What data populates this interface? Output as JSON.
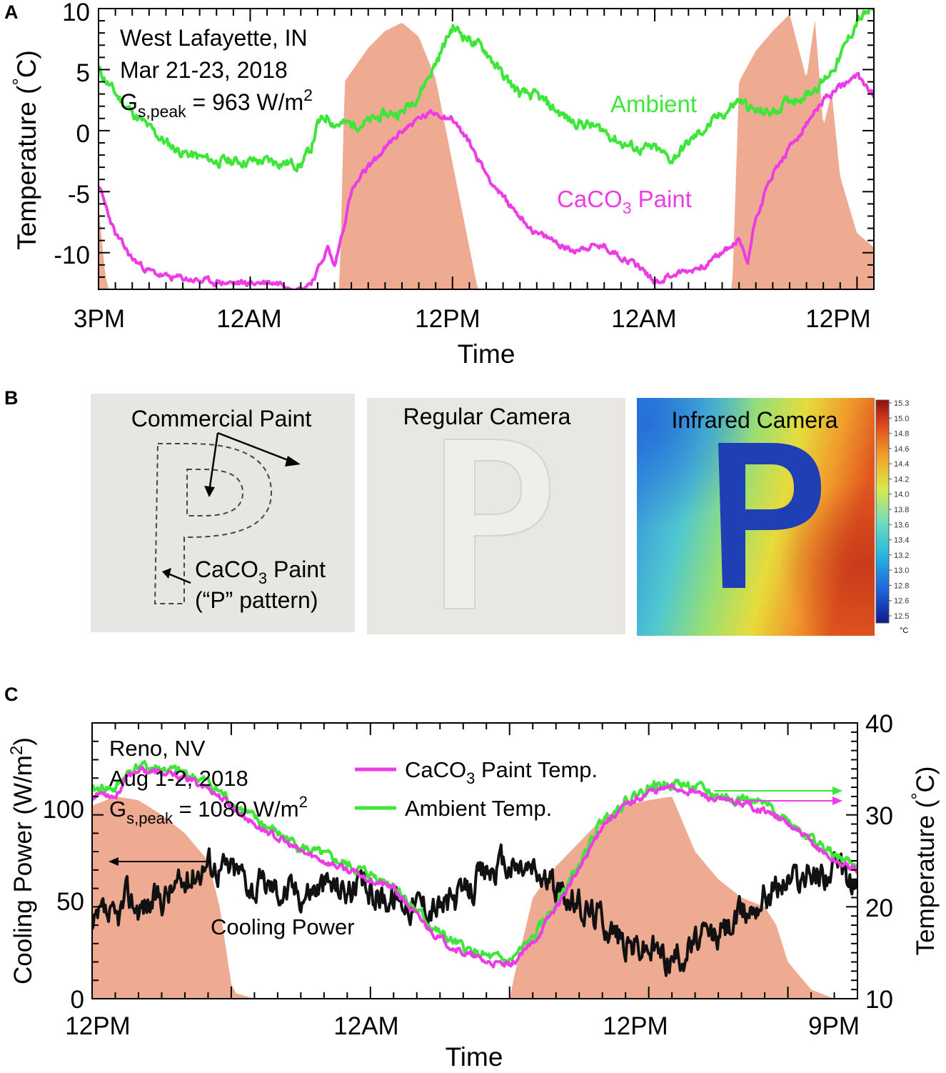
{
  "colors": {
    "ambient": "#3ee63a",
    "paint": "#ec3ce6",
    "cooling": "#111111",
    "solar": "#eeab92",
    "axis": "#000000",
    "panel_bg": "#e7e6e2",
    "colorbar": [
      "#0d1a8c",
      "#1f5fd8",
      "#23b6e0",
      "#6fdcc0",
      "#d8ea4a",
      "#f3a02c",
      "#d9421c",
      "#8e1010"
    ]
  },
  "panelA": {
    "label": "A",
    "annotation": {
      "line1": "West Lafayette, IN",
      "line2": "Mar 21-23, 2018",
      "gs_prefix": "G",
      "gs_sub": "s,peak",
      "gs_value": " = 963 W/m",
      "gs_sup": "2"
    },
    "ylabel": {
      "text": "Temperature (",
      "deg": "°",
      "unit": "C)"
    },
    "xlabel": "Time",
    "ambient_label": "Ambient",
    "paint_label": {
      "pre": "CaCO",
      "sub": "3",
      "post": " Paint"
    }
  },
  "panelB": {
    "label": "B",
    "left_title": "Commercial Paint",
    "left_note_pre": "CaCO",
    "left_note_sub": "3",
    "left_note_post": " Paint",
    "left_note2": "(“P” pattern)",
    "mid_title": "Regular Camera",
    "right_title": "Infrared  Camera",
    "colorbar_ticks": [
      "15.3",
      "15.0",
      "14.8",
      "14.6",
      "14.4",
      "14.2",
      "14.0",
      "13.8",
      "13.6",
      "13.4",
      "13.2",
      "13.0",
      "12.8",
      "12.6",
      "12.5"
    ],
    "colorbar_unit": "°C"
  },
  "panelC": {
    "label": "C",
    "annotation": {
      "line1": "Reno, NV",
      "line2": "Aug 1-2, 2018",
      "gs_prefix": "G",
      "gs_sub": "s,peak",
      "gs_value": " = 1080 W/m",
      "gs_sup": "2"
    },
    "ylabel_left": {
      "text": "Cooling Power (W/m",
      "sup": "2",
      "close": ")"
    },
    "ylabel_right": {
      "text": "Temperature (",
      "deg": "°",
      "unit": "C)"
    },
    "xlabel": "Time",
    "legend_paint": {
      "pre": "CaCO",
      "sub": "3",
      "post": " Paint Temp."
    },
    "legend_ambient": "Ambient Temp.",
    "cooling_label": "Cooling Power"
  },
  "chart_data": [
    {
      "id": "A",
      "type": "line",
      "title": "",
      "xlabel": "Time",
      "ylabel": "Temperature (°C)",
      "x_unit": "hours since 3PM Mar 21",
      "xlim": [
        0,
        46
      ],
      "ylim": [
        -13,
        10
      ],
      "x_ticks": [
        {
          "x": 0,
          "label": "3PM"
        },
        {
          "x": 9,
          "label": "12AM"
        },
        {
          "x": 21,
          "label": "12PM"
        },
        {
          "x": 33,
          "label": "12AM"
        },
        {
          "x": 45,
          "label": "12PM"
        }
      ],
      "y_ticks": [
        10,
        5,
        0,
        -5,
        -10
      ],
      "series": [
        {
          "name": "Ambient",
          "x": [
            0,
            1,
            2,
            3,
            4,
            5,
            6,
            7,
            8,
            9,
            10,
            11,
            12,
            12.6,
            13,
            13.6,
            14,
            15,
            16,
            17,
            18,
            19,
            20,
            21,
            22,
            23,
            24,
            25,
            26,
            27,
            28,
            29,
            30,
            31,
            32,
            33,
            34,
            35,
            36,
            37,
            38,
            39,
            40,
            41,
            42,
            43,
            44,
            45,
            46
          ],
          "y": [
            5,
            3,
            1.5,
            0.2,
            -1,
            -1.8,
            -2.2,
            -2.5,
            -2.5,
            -2.5,
            -2.5,
            -2.6,
            -2.8,
            -1.5,
            0.5,
            1.2,
            0.6,
            0.5,
            0.7,
            1.3,
            1.5,
            3,
            5.5,
            8.5,
            7.5,
            6.5,
            4.5,
            3,
            2.8,
            1.8,
            0.8,
            0.5,
            0,
            -1,
            -1.5,
            -1.5,
            -2.4,
            -1,
            0.2,
            1.3,
            2.5,
            1.5,
            1.5,
            2.5,
            3,
            4,
            6,
            9,
            10
          ]
        },
        {
          "name": "CaCO3 Paint",
          "x": [
            0,
            1,
            2,
            3,
            4,
            5,
            6,
            7,
            8,
            9,
            10,
            11,
            12,
            12.6,
            13,
            13.3,
            13.6,
            14,
            15,
            16,
            17,
            18,
            19,
            20,
            21,
            22,
            23,
            24,
            25,
            26,
            27,
            28,
            29,
            30,
            31,
            32,
            33,
            34,
            35,
            36,
            37,
            38,
            38.5,
            39,
            40,
            41,
            42,
            43,
            44,
            45,
            46
          ],
          "y": [
            -4.5,
            -8.5,
            -10.5,
            -11.5,
            -12,
            -12.1,
            -12.3,
            -12.4,
            -12.5,
            -12.5,
            -12.4,
            -12.5,
            -13,
            -12.4,
            -11.5,
            -10.5,
            -9.6,
            -11.2,
            -5,
            -3,
            -1.5,
            0,
            1,
            1.5,
            1,
            -1,
            -3.5,
            -5.5,
            -7,
            -8.5,
            -9,
            -9.8,
            -9.5,
            -9.5,
            -10.3,
            -11,
            -12.4,
            -11.8,
            -11.5,
            -11,
            -10,
            -9,
            -10.8,
            -7,
            -3.5,
            -1.5,
            0.5,
            2.5,
            3.5,
            4.5,
            3
          ]
        }
      ],
      "solar_irradiance": {
        "peak_W_m2": 963,
        "x": [
          0,
          0.4,
          0.6,
          14.3,
          14.6,
          16,
          17,
          18,
          19,
          20,
          21,
          22,
          22.5,
          37.6,
          38,
          39,
          40,
          41,
          42,
          42.5,
          43,
          43.5,
          44,
          45,
          46
        ],
        "rel": [
          0.3,
          0.05,
          0,
          0,
          0.74,
          0.86,
          0.92,
          0.95,
          0.9,
          0.75,
          0.45,
          0.15,
          0,
          0,
          0.74,
          0.85,
          0.92,
          0.98,
          0.75,
          0.96,
          0.58,
          0.7,
          0.4,
          0.2,
          0.15
        ]
      }
    },
    {
      "id": "C",
      "type": "line",
      "title": "",
      "xlabel": "Time",
      "ylabel": "Cooling Power (W/m2)",
      "ylabel_right": "Temperature (°C)",
      "x_unit": "hours since 12PM Aug 1",
      "xlim": [
        0,
        33
      ],
      "ylim": [
        0,
        150
      ],
      "ylim_right": [
        10,
        40
      ],
      "x_ticks": [
        {
          "x": 0,
          "label": "12PM"
        },
        {
          "x": 12,
          "label": "12AM"
        },
        {
          "x": 24,
          "label": "12PM"
        },
        {
          "x": 33,
          "label": "9PM"
        }
      ],
      "y_ticks": [
        0,
        50,
        100
      ],
      "y_ticks_right": [
        10,
        20,
        30,
        40
      ],
      "series": [
        {
          "name": "Cooling Power",
          "axis": "left",
          "x": [
            0,
            0.5,
            1,
            1.5,
            2,
            2.5,
            3,
            3.5,
            4,
            4.5,
            5,
            5.5,
            6,
            6.5,
            7,
            7.5,
            8,
            9,
            10,
            11,
            12,
            13,
            14,
            15,
            16,
            17,
            18,
            19,
            20,
            21,
            22,
            23,
            24,
            25,
            26,
            27,
            28,
            29,
            30,
            31,
            32,
            33
          ],
          "y": [
            35,
            45,
            40,
            55,
            50,
            52,
            55,
            60,
            62,
            70,
            75,
            72,
            70,
            68,
            60,
            62,
            60,
            58,
            62,
            60,
            58,
            55,
            52,
            50,
            55,
            70,
            72,
            70,
            60,
            50,
            45,
            30,
            28,
            22,
            30,
            35,
            45,
            58,
            65,
            68,
            70,
            60
          ]
        },
        {
          "name": "CaCO3 Paint Temp.",
          "axis": "right",
          "x": [
            0,
            0.5,
            1,
            1.5,
            2,
            3,
            4,
            5,
            6,
            7,
            8,
            9,
            10,
            11,
            12,
            13,
            14,
            15,
            16,
            17,
            18,
            19,
            20,
            21,
            22,
            23,
            24,
            25,
            26,
            27,
            28,
            29,
            30,
            31,
            32,
            33
          ],
          "y": [
            32,
            32.5,
            32,
            34,
            35,
            34.5,
            34,
            33,
            31,
            29,
            27.5,
            26,
            25,
            24,
            23,
            22,
            19,
            16.5,
            15,
            14,
            13.5,
            16,
            20,
            24,
            29,
            31,
            32.5,
            33,
            32.5,
            31.5,
            31.3,
            30.5,
            29,
            27,
            25,
            24
          ]
        },
        {
          "name": "Ambient Temp.",
          "axis": "right",
          "x": [
            0,
            0.5,
            1,
            1.5,
            2,
            3,
            4,
            5,
            6,
            7,
            8,
            9,
            10,
            11,
            12,
            13,
            14,
            15,
            16,
            17,
            18,
            19,
            20,
            21,
            22,
            23,
            24,
            25,
            26,
            27,
            28,
            29,
            30,
            31,
            32,
            33
          ],
          "y": [
            32.5,
            33,
            32.8,
            34.5,
            35.3,
            35,
            34.5,
            33.5,
            31.5,
            29.5,
            28,
            26.5,
            25.5,
            24.5,
            23.5,
            22.5,
            19.5,
            17,
            15.5,
            14.5,
            14,
            16.5,
            20.5,
            24.5,
            29.5,
            31.5,
            33,
            33.5,
            33,
            32,
            31.8,
            31,
            29.5,
            27.5,
            25.5,
            24.5
          ]
        }
      ],
      "solar_irradiance": {
        "peak_W_m2": 1080,
        "axis": "left",
        "x": [
          0,
          1,
          2,
          3,
          4,
          5,
          5.5,
          6,
          6.2,
          7,
          18,
          18.2,
          19,
          20,
          21,
          22,
          23,
          24,
          25,
          25.5,
          26,
          27,
          28,
          29,
          29.5,
          30,
          31,
          32,
          33
        ],
        "y": [
          105,
          110,
          108,
          100,
          90,
          75,
          50,
          8,
          3,
          0,
          0,
          12,
          55,
          72,
          85,
          98,
          105,
          108,
          110,
          95,
          80,
          65,
          55,
          50,
          40,
          20,
          5,
          0,
          0
        ]
      }
    }
  ]
}
